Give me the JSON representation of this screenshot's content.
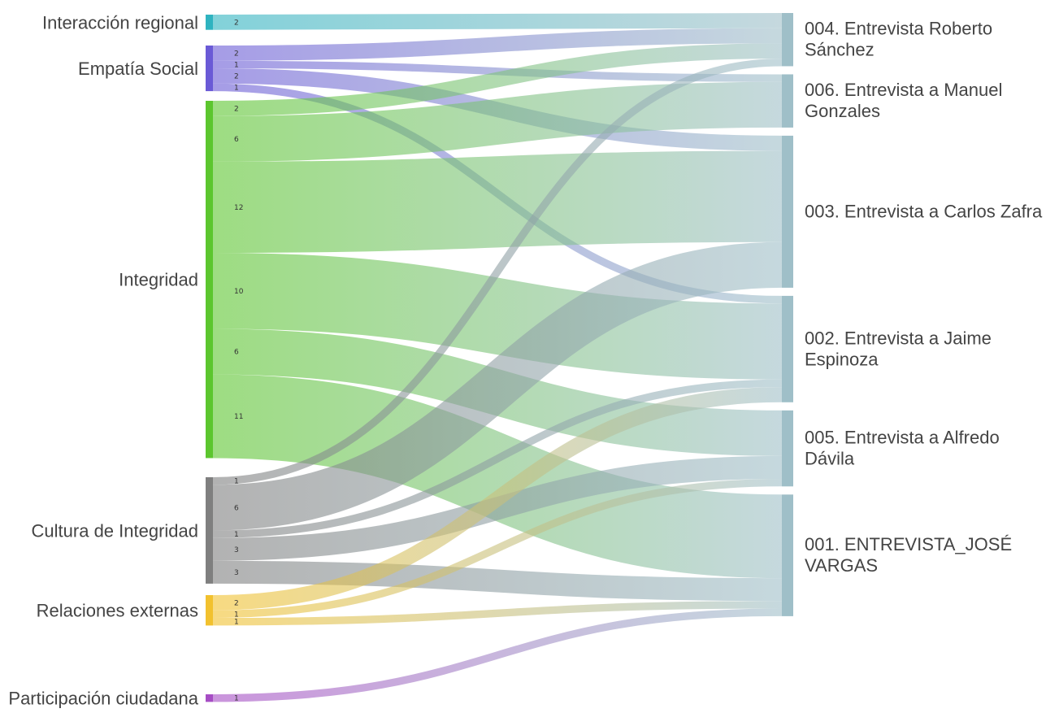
{
  "chart_data": {
    "type": "sankey",
    "sources": [
      {
        "name": "Interacción regional",
        "color": "#2fb3c0"
      },
      {
        "name": "Empatía Social",
        "color": "#6a5ad6"
      },
      {
        "name": "Integridad",
        "color": "#5cc62e"
      },
      {
        "name": "Cultura de Integridad",
        "color": "#7f7f7f"
      },
      {
        "name": "Relaciones externas",
        "color": "#f2c12e"
      },
      {
        "name": "Participación ciudadana",
        "color": "#a64dc4"
      }
    ],
    "targets": [
      {
        "name": "004. Entrevista Roberto Sánchez",
        "lines": [
          "004. Entrevista Roberto",
          "Sánchez"
        ],
        "color": "#9fbfc8"
      },
      {
        "name": "006. Entrevista a Manuel Gonzales",
        "lines": [
          "006. Entrevista a Manuel",
          "Gonzales"
        ],
        "color": "#9fbfc8"
      },
      {
        "name": "003. Entrevista a Carlos Zafra",
        "lines": [
          "003. Entrevista a Carlos Zafra"
        ],
        "color": "#9fbfc8"
      },
      {
        "name": "002. Entrevista a Jaime Espinoza",
        "lines": [
          "002. Entrevista a Jaime",
          "Espinoza"
        ],
        "color": "#9fbfc8"
      },
      {
        "name": "005. Entrevista a Alfredo Dávila",
        "lines": [
          "005. Entrevista a Alfredo",
          "Dávila"
        ],
        "color": "#9fbfc8"
      },
      {
        "name": "001. ENTREVISTA_JOSÉ VARGAS",
        "lines": [
          "001. ENTREVISTA_JOSÉ",
          "VARGAS"
        ],
        "color": "#9fbfc8"
      }
    ],
    "links": [
      {
        "source": "Interacción regional",
        "target": "004. Entrevista Roberto Sánchez",
        "value": 2
      },
      {
        "source": "Empatía Social",
        "target": "004. Entrevista Roberto Sánchez",
        "value": 2
      },
      {
        "source": "Empatía Social",
        "target": "006. Entrevista a Manuel Gonzales",
        "value": 1
      },
      {
        "source": "Empatía Social",
        "target": "003. Entrevista a Carlos Zafra",
        "value": 2
      },
      {
        "source": "Empatía Social",
        "target": "002. Entrevista a Jaime Espinoza",
        "value": 1
      },
      {
        "source": "Integridad",
        "target": "004. Entrevista Roberto Sánchez",
        "value": 2
      },
      {
        "source": "Integridad",
        "target": "006. Entrevista a Manuel Gonzales",
        "value": 6
      },
      {
        "source": "Integridad",
        "target": "003. Entrevista a Carlos Zafra",
        "value": 12
      },
      {
        "source": "Integridad",
        "target": "002. Entrevista a Jaime Espinoza",
        "value": 10
      },
      {
        "source": "Integridad",
        "target": "005. Entrevista a Alfredo Dávila",
        "value": 6
      },
      {
        "source": "Integridad",
        "target": "001. ENTREVISTA_JOSÉ VARGAS",
        "value": 11
      },
      {
        "source": "Cultura de Integridad",
        "target": "004. Entrevista Roberto Sánchez",
        "value": 1
      },
      {
        "source": "Cultura de Integridad",
        "target": "003. Entrevista a Carlos Zafra",
        "value": 6
      },
      {
        "source": "Cultura de Integridad",
        "target": "002. Entrevista a Jaime Espinoza",
        "value": 1
      },
      {
        "source": "Cultura de Integridad",
        "target": "005. Entrevista a Alfredo Dávila",
        "value": 3
      },
      {
        "source": "Cultura de Integridad",
        "target": "001. ENTREVISTA_JOSÉ VARGAS",
        "value": 3
      },
      {
        "source": "Relaciones externas",
        "target": "002. Entrevista a Jaime Espinoza",
        "value": 2
      },
      {
        "source": "Relaciones externas",
        "target": "005. Entrevista a Alfredo Dávila",
        "value": 1
      },
      {
        "source": "Relaciones externas",
        "target": "001. ENTREVISTA_JOSÉ VARGAS",
        "value": 1
      },
      {
        "source": "Participación ciudadana",
        "target": "001. ENTREVISTA_JOSÉ VARGAS",
        "value": 1
      }
    ]
  }
}
